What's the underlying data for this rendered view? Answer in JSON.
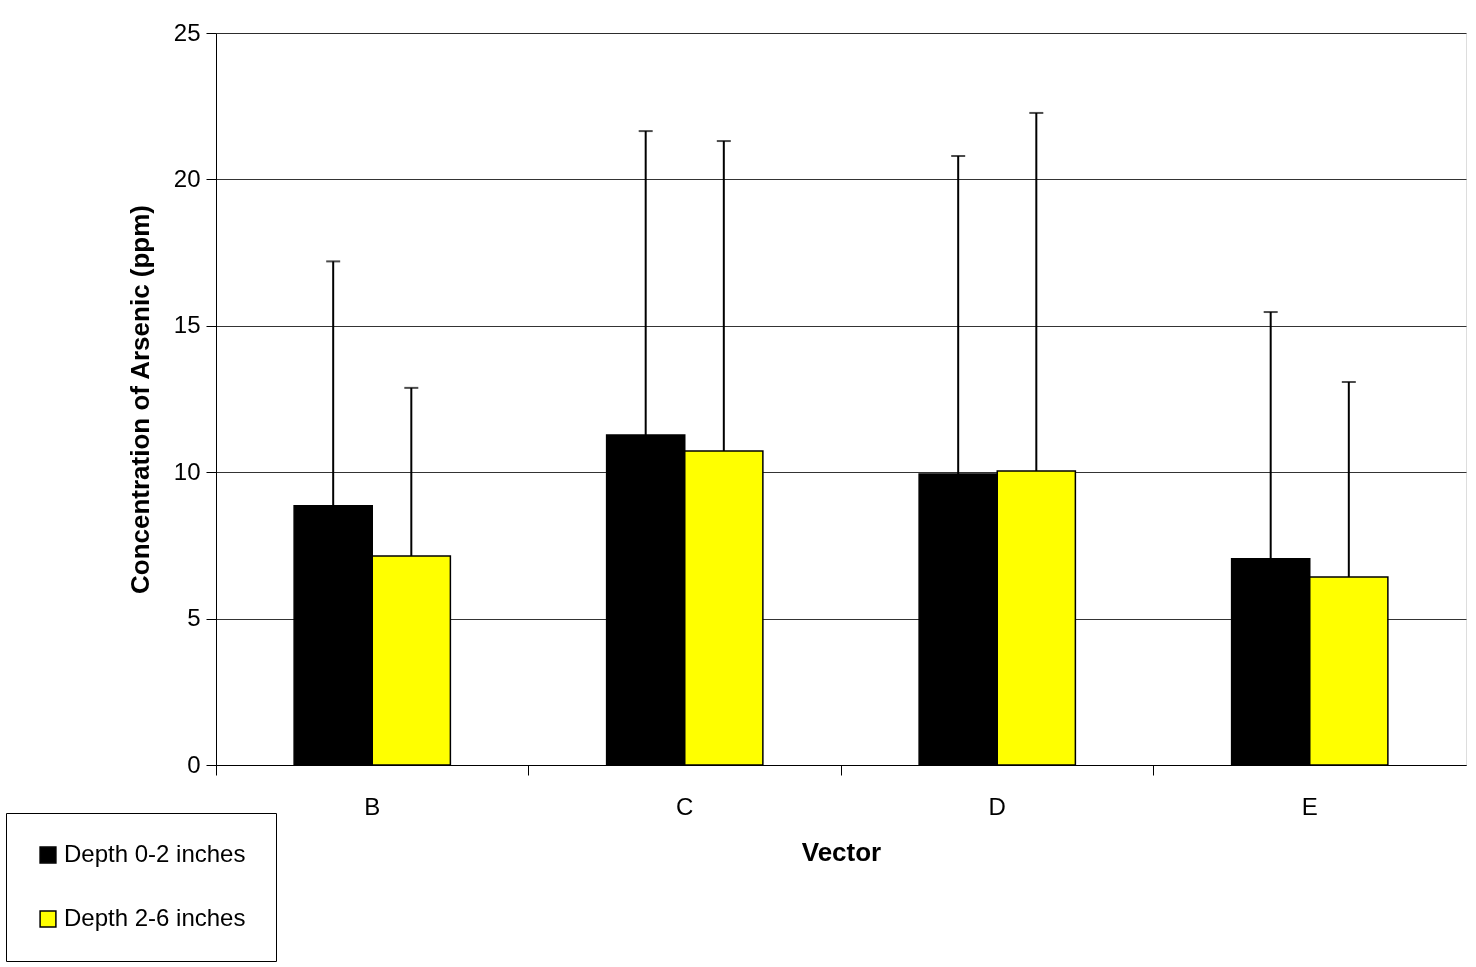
{
  "chart_data": {
    "type": "bar",
    "categories": [
      "B",
      "C",
      "D",
      "E"
    ],
    "xlabel": "Vector",
    "ylabel": "Concentration of Arsenic (ppm)",
    "ylim": [
      0,
      25
    ],
    "yticks": [
      0,
      5,
      10,
      15,
      20,
      25
    ],
    "grid": "y",
    "legend": "bottom left",
    "series": [
      {
        "name": "Depth 0-2 inches",
        "color": "#000000",
        "values": [
          8.85,
          11.27,
          9.94,
          7.04
        ],
        "errors": [
          [
            8.85,
            17.2
          ],
          [
            11.27,
            21.65
          ],
          [
            9.94,
            20.8
          ],
          [
            7.04,
            15.47
          ]
        ]
      },
      {
        "name": "Depth 2-6 inches",
        "color": "#ffff00",
        "values": [
          7.14,
          10.72,
          10.04,
          6.42
        ],
        "errors": [
          [
            7.14,
            12.88
          ],
          [
            10.72,
            21.31
          ],
          [
            10.04,
            22.27
          ],
          [
            6.42,
            13.08
          ]
        ]
      }
    ]
  }
}
